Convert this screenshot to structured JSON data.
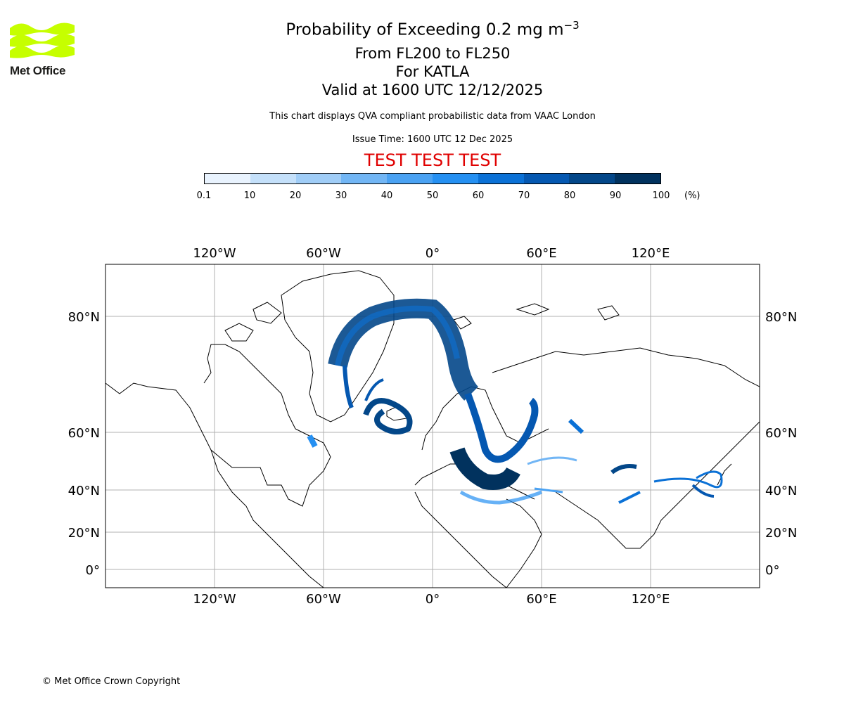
{
  "logo": {
    "name": "Met Office",
    "color": "#c6ff00"
  },
  "title": {
    "line1_prefix": "Probability of Exceeding 0.2 mg m",
    "line1_exponent": "−3",
    "line2": "From FL200 to FL250",
    "line3": "For KATLA",
    "line4": "Valid at 1600 UTC 12/12/2025"
  },
  "description": "This chart displays QVA compliant probabilistic data from VAAC London",
  "issue_time": "Issue Time: 1600 UTC 12 Dec 2025",
  "test_banner": "TEST TEST TEST",
  "test_color": "#e00000",
  "colorbar": {
    "ticks": [
      "0.1",
      "10",
      "20",
      "30",
      "40",
      "50",
      "60",
      "70",
      "80",
      "90",
      "100"
    ],
    "colors": [
      "#e9f3fe",
      "#c4e0fa",
      "#a0cdf7",
      "#72b6f5",
      "#4aa2f3",
      "#2590f2",
      "#0b71d6",
      "#0558b1",
      "#034789",
      "#01325e"
    ],
    "unit": "(%)"
  },
  "map": {
    "lon_labels": [
      "120°W",
      "60°W",
      "0°",
      "60°E",
      "120°E"
    ],
    "lon_values": [
      -120,
      -60,
      0,
      60,
      120
    ],
    "lat_labels": [
      "80°N",
      "60°N",
      "40°N",
      "20°N",
      "0°"
    ],
    "lat_values": [
      80,
      60,
      40,
      20,
      0
    ],
    "volcano": "KATLA"
  },
  "copyright": "© Met Office Crown Copyright"
}
